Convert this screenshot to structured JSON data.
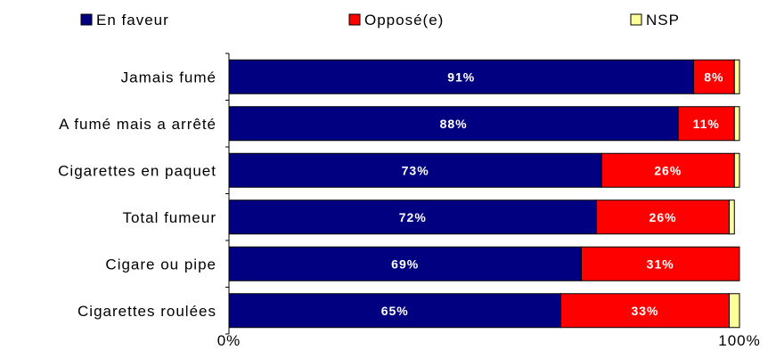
{
  "chart_data": {
    "type": "bar",
    "orientation": "horizontal",
    "stacked": true,
    "categories": [
      "Jamais fumé",
      "A fumé mais a arrêté",
      "Cigarettes en paquet",
      "Total fumeur",
      "Cigare ou pipe",
      "Cigarettes roulées"
    ],
    "series": [
      {
        "name": "En faveur",
        "color": "#000080",
        "values": [
          91,
          88,
          73,
          72,
          69,
          65
        ],
        "labels": [
          "91%",
          "88%",
          "73%",
          "72%",
          "69%",
          "65%"
        ]
      },
      {
        "name": "Opposé(e)",
        "color": "#FF0000",
        "values": [
          8,
          11,
          26,
          26,
          31,
          33
        ],
        "labels": [
          "8%",
          "11%",
          "26%",
          "26%",
          "31%",
          "33%"
        ]
      },
      {
        "name": "NSP",
        "color": "#FFFF99",
        "values": [
          1,
          1,
          1,
          1,
          0,
          2
        ],
        "labels": []
      }
    ],
    "xlim": [
      0,
      100
    ],
    "x_ticks": [
      "0%",
      "100%"
    ],
    "legend_position": "top",
    "grid": false
  }
}
